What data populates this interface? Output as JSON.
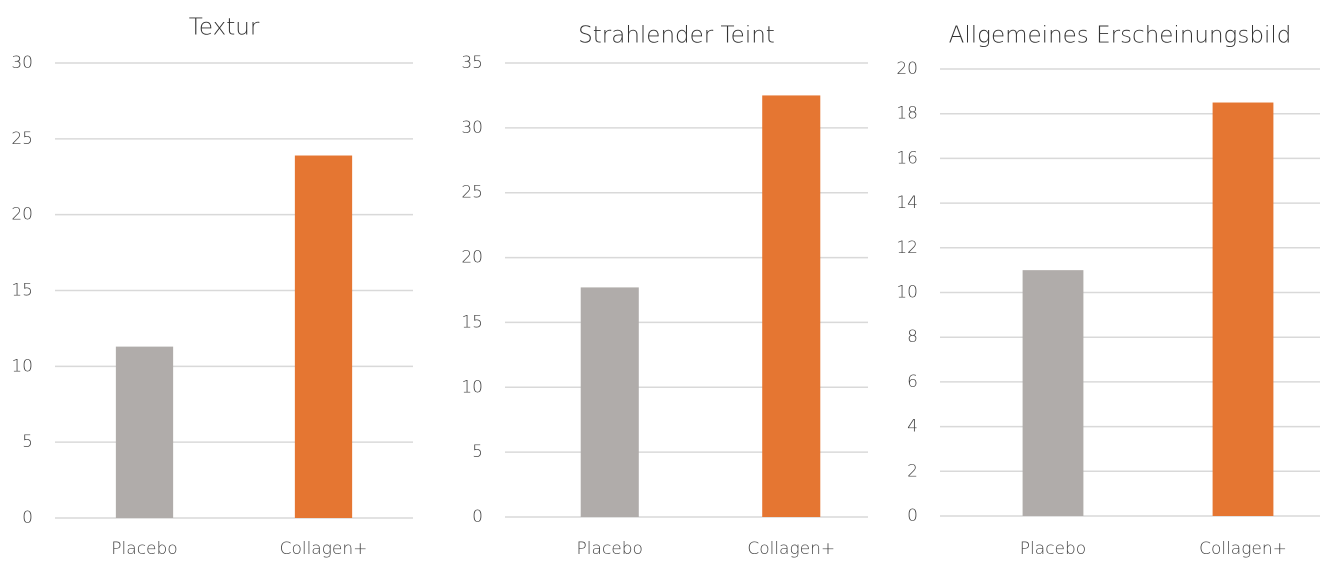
{
  "chart_data": [
    {
      "type": "bar",
      "title": "Textur",
      "categories": [
        "Placebo",
        "Collagen+"
      ],
      "values": [
        11.3,
        23.9
      ],
      "colors": [
        "#b0acaa",
        "#e57632"
      ],
      "ylim": [
        0,
        30
      ],
      "yticks": [
        0,
        5,
        10,
        15,
        20,
        25,
        30
      ],
      "grid": true
    },
    {
      "type": "bar",
      "title": "Strahlender Teint",
      "categories": [
        "Placebo",
        "Collagen+"
      ],
      "values": [
        17.7,
        32.5
      ],
      "colors": [
        "#b0acaa",
        "#e57632"
      ],
      "ylim": [
        0,
        35
      ],
      "yticks": [
        0,
        5,
        10,
        15,
        20,
        25,
        30,
        35
      ],
      "grid": true
    },
    {
      "type": "bar",
      "title": "Allgemeines Erscheinungsbild",
      "categories": [
        "Placebo",
        "Collagen+"
      ],
      "values": [
        11.0,
        18.5
      ],
      "colors": [
        "#b0acaa",
        "#e57632"
      ],
      "ylim": [
        0,
        20
      ],
      "yticks": [
        0,
        2,
        4,
        6,
        8,
        10,
        12,
        14,
        16,
        18,
        20
      ],
      "grid": true
    }
  ]
}
